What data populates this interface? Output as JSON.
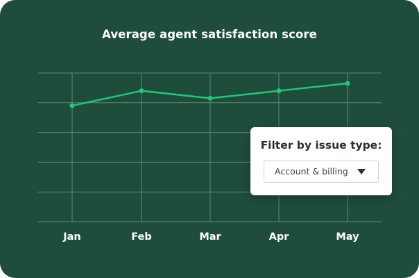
{
  "chart_data": {
    "type": "line",
    "title": "Average agent satisfaction score",
    "categories": [
      "Jan",
      "Feb",
      "Mar",
      "Apr",
      "May"
    ],
    "series": [
      {
        "values": [
          3.9,
          4.4,
          4.15,
          4.4,
          4.65
        ]
      }
    ],
    "ylim": [
      0,
      5
    ],
    "grid": true,
    "line_color": "#1ec87a",
    "grid_color": "#5c8675",
    "background": "#1f4d3b",
    "label_color": "#ffffff"
  },
  "filter": {
    "label": "Filter by issue type:",
    "selected": "Account & billing"
  }
}
